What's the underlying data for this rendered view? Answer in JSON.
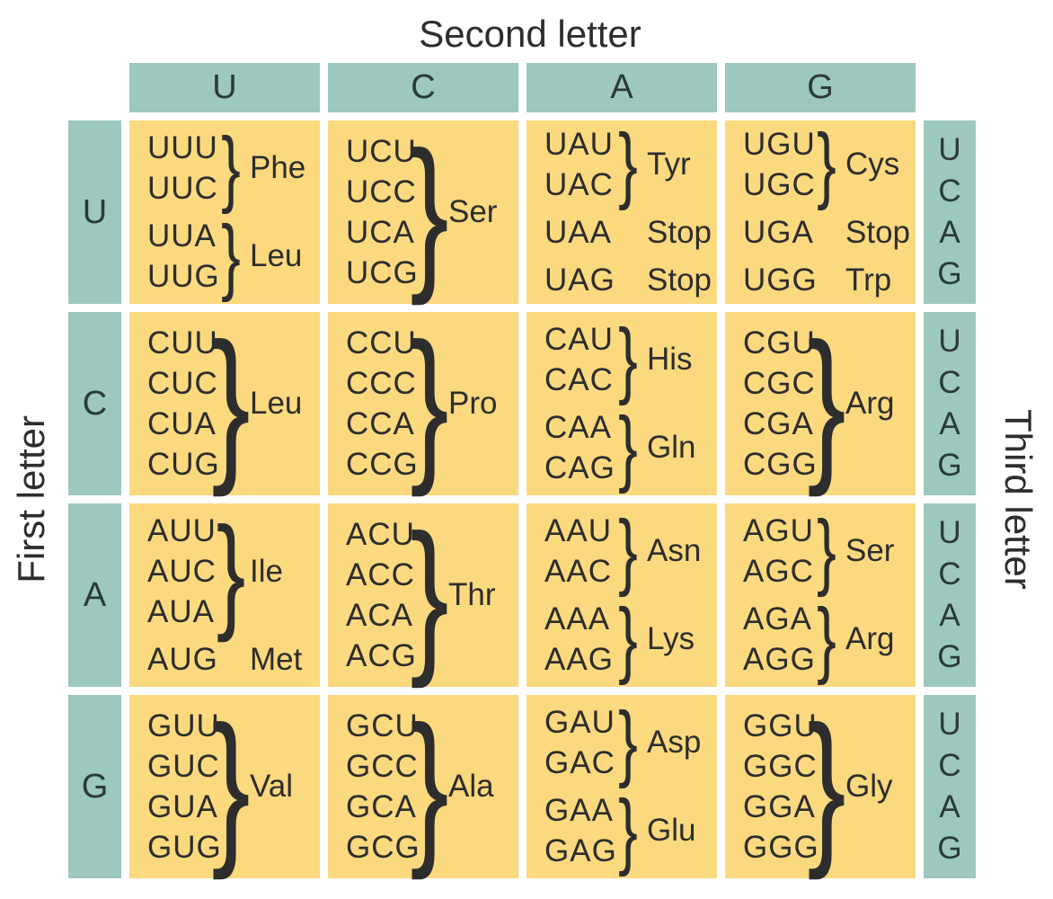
{
  "title": "Second letter",
  "axes": {
    "left": "First letter",
    "right": "Third letter"
  },
  "column_headers": [
    "U",
    "C",
    "A",
    "G"
  ],
  "row_headers": [
    "U",
    "C",
    "A",
    "G"
  ],
  "third_letter_labels": [
    "U",
    "C",
    "A",
    "G"
  ],
  "colors": {
    "teal": "#9cc8bf",
    "yellow": "#fbd97e",
    "ink": "#2d2d2d",
    "teal_ink": "#2a3a37",
    "background": "#ffffff"
  },
  "grid": [
    {
      "first_letter": "U",
      "cells": [
        {
          "groups": [
            {
              "codons": [
                "UUU",
                "UUC"
              ],
              "amino": "Phe",
              "brace": true
            },
            {
              "codons": [
                "UUA",
                "UUG"
              ],
              "amino": "Leu",
              "brace": true
            }
          ]
        },
        {
          "groups": [
            {
              "codons": [
                "UCU",
                "UCC",
                "UCA",
                "UCG"
              ],
              "amino": "Ser",
              "brace": true
            }
          ]
        },
        {
          "groups": [
            {
              "codons": [
                "UAU",
                "UAC"
              ],
              "amino": "Tyr",
              "brace": true
            },
            {
              "codons": [
                "UAA"
              ],
              "amino": "Stop",
              "brace": false
            },
            {
              "codons": [
                "UAG"
              ],
              "amino": "Stop",
              "brace": false
            }
          ]
        },
        {
          "groups": [
            {
              "codons": [
                "UGU",
                "UGC"
              ],
              "amino": "Cys",
              "brace": true
            },
            {
              "codons": [
                "UGA"
              ],
              "amino": "Stop",
              "brace": false
            },
            {
              "codons": [
                "UGG"
              ],
              "amino": "Trp",
              "brace": false
            }
          ]
        }
      ]
    },
    {
      "first_letter": "C",
      "cells": [
        {
          "groups": [
            {
              "codons": [
                "CUU",
                "CUC",
                "CUA",
                "CUG"
              ],
              "amino": "Leu",
              "brace": true
            }
          ]
        },
        {
          "groups": [
            {
              "codons": [
                "CCU",
                "CCC",
                "CCA",
                "CCG"
              ],
              "amino": "Pro",
              "brace": true
            }
          ]
        },
        {
          "groups": [
            {
              "codons": [
                "CAU",
                "CAC"
              ],
              "amino": "His",
              "brace": true
            },
            {
              "codons": [
                "CAA",
                "CAG"
              ],
              "amino": "Gln",
              "brace": true
            }
          ]
        },
        {
          "groups": [
            {
              "codons": [
                "CGU",
                "CGC",
                "CGA",
                "CGG"
              ],
              "amino": "Arg",
              "brace": true
            }
          ]
        }
      ]
    },
    {
      "first_letter": "A",
      "cells": [
        {
          "groups": [
            {
              "codons": [
                "AUU",
                "AUC",
                "AUA"
              ],
              "amino": "Ile",
              "brace": true
            },
            {
              "codons": [
                "AUG"
              ],
              "amino": "Met",
              "brace": false
            }
          ]
        },
        {
          "groups": [
            {
              "codons": [
                "ACU",
                "ACC",
                "ACA",
                "ACG"
              ],
              "amino": "Thr",
              "brace": true
            }
          ]
        },
        {
          "groups": [
            {
              "codons": [
                "AAU",
                "AAC"
              ],
              "amino": "Asn",
              "brace": true
            },
            {
              "codons": [
                "AAA",
                "AAG"
              ],
              "amino": "Lys",
              "brace": true
            }
          ]
        },
        {
          "groups": [
            {
              "codons": [
                "AGU",
                "AGC"
              ],
              "amino": "Ser",
              "brace": true
            },
            {
              "codons": [
                "AGA",
                "AGG"
              ],
              "amino": "Arg",
              "brace": true
            }
          ]
        }
      ]
    },
    {
      "first_letter": "G",
      "cells": [
        {
          "groups": [
            {
              "codons": [
                "GUU",
                "GUC",
                "GUA",
                "GUG"
              ],
              "amino": "Val",
              "brace": true
            }
          ]
        },
        {
          "groups": [
            {
              "codons": [
                "GCU",
                "GCC",
                "GCA",
                "GCG"
              ],
              "amino": "Ala",
              "brace": true
            }
          ]
        },
        {
          "groups": [
            {
              "codons": [
                "GAU",
                "GAC"
              ],
              "amino": "Asp",
              "brace": true
            },
            {
              "codons": [
                "GAA",
                "GAG"
              ],
              "amino": "Glu",
              "brace": true
            }
          ]
        },
        {
          "groups": [
            {
              "codons": [
                "GGU",
                "GGC",
                "GGA",
                "GGG"
              ],
              "amino": "Gly",
              "brace": true
            }
          ]
        }
      ]
    }
  ]
}
